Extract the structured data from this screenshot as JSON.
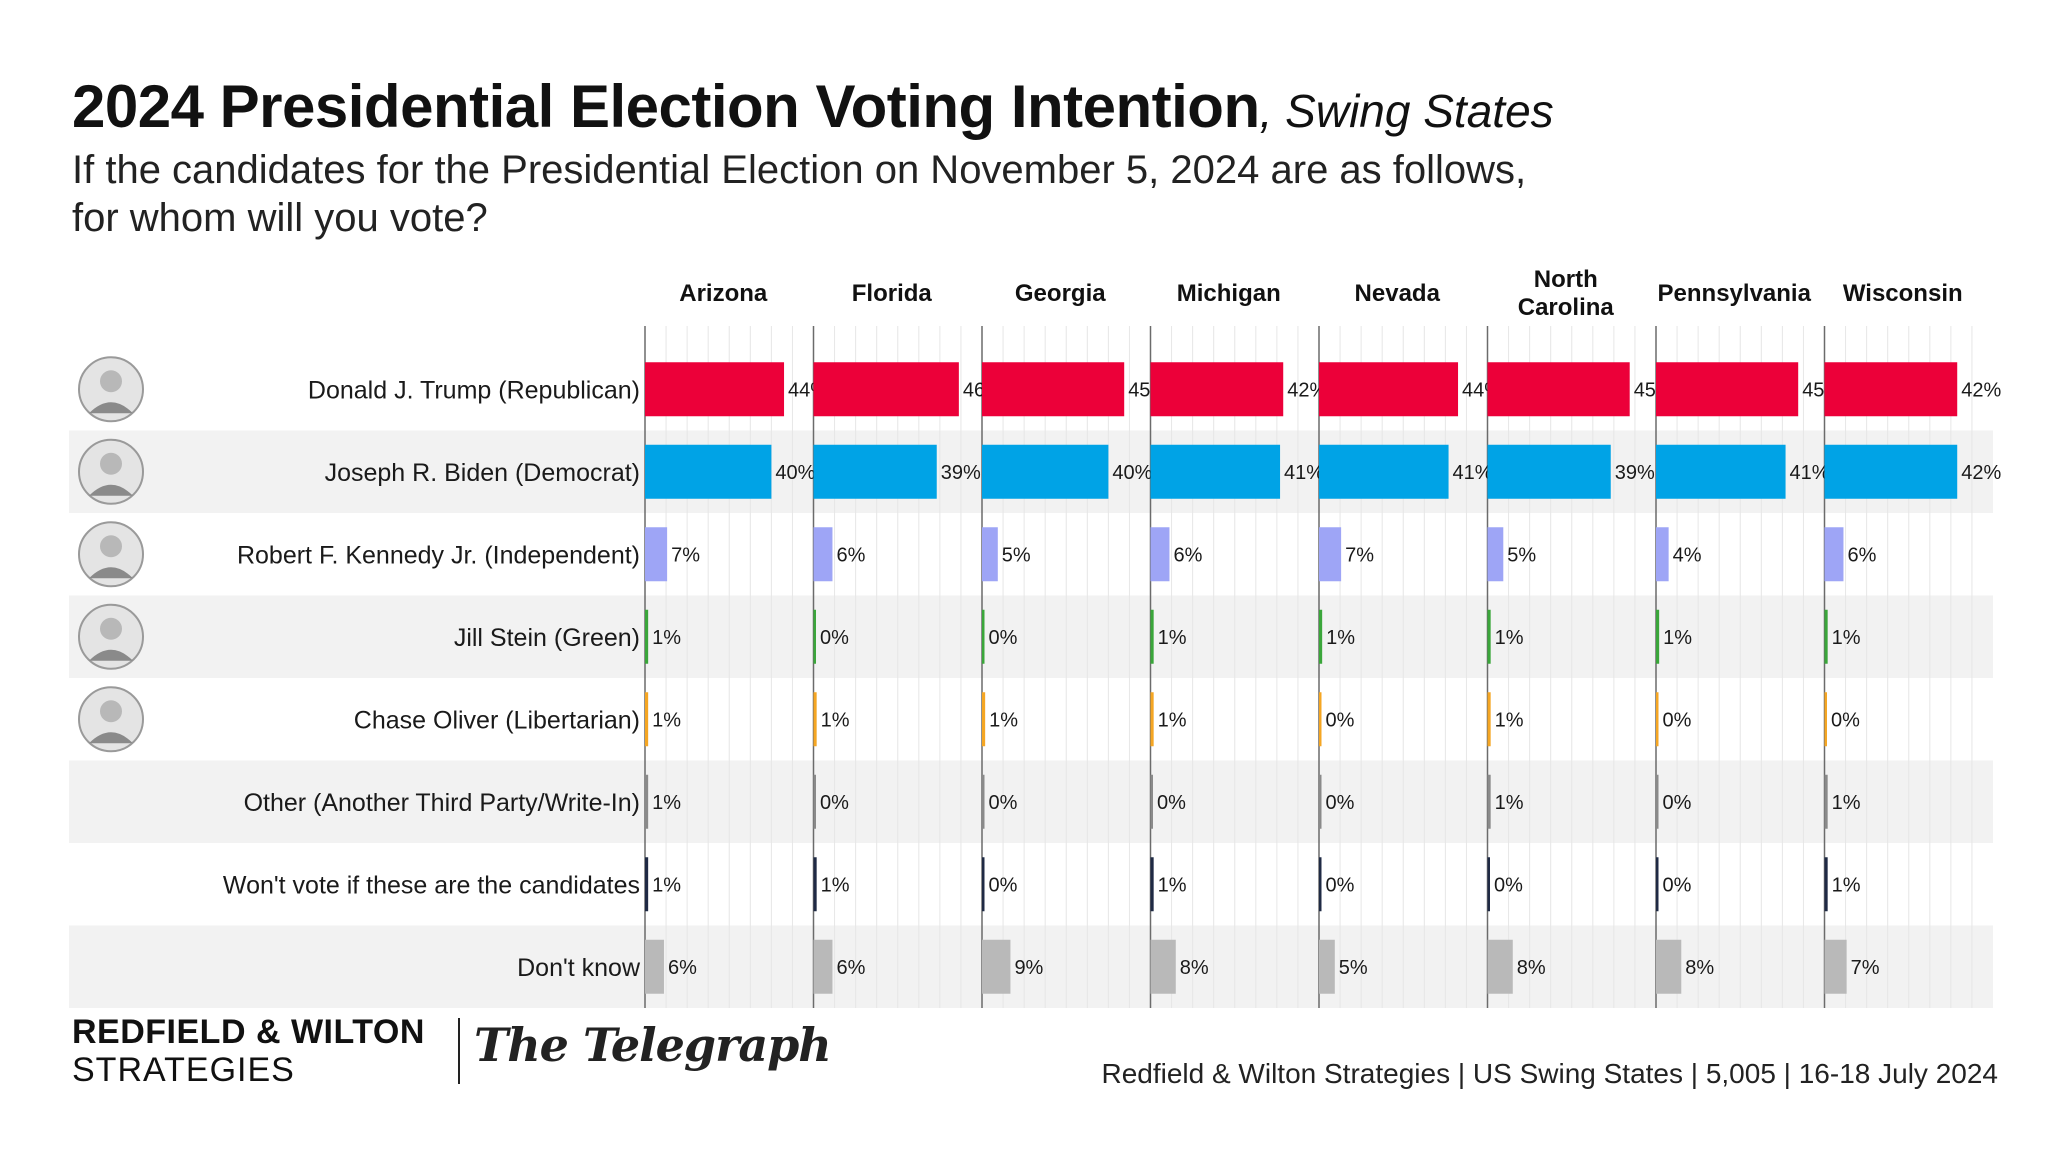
{
  "title": {
    "main": "2024 Presidential Election Voting Intention",
    "suffix": ", Swing States",
    "subtitle": "If the candidates for the Presidential Election on November 5, 2024 are as follows, for whom will you vote?"
  },
  "chart_data": {
    "type": "bar",
    "title": "2024 Presidential Election Voting Intention, Swing States",
    "subtitle": "If the candidates for the Presidential Election on November 5, 2024 are as follows, for whom will you vote?",
    "xlabel": "",
    "ylabel": "",
    "unit": "%",
    "xlim": [
      0,
      50
    ],
    "grid": true,
    "states": [
      {
        "lines": [
          "Arizona"
        ]
      },
      {
        "lines": [
          "Florida"
        ]
      },
      {
        "lines": [
          "Georgia"
        ]
      },
      {
        "lines": [
          "Michigan"
        ]
      },
      {
        "lines": [
          "Nevada"
        ]
      },
      {
        "lines": [
          "North",
          "Carolina"
        ]
      },
      {
        "lines": [
          "Pennsylvania"
        ]
      },
      {
        "lines": [
          "Wisconsin"
        ]
      }
    ],
    "series": [
      {
        "name": "Donald J. Trump (Republican)",
        "color": "#ec0039",
        "avatar": "trump-avatar",
        "values": [
          44,
          46,
          45,
          42,
          44,
          45,
          45,
          42
        ]
      },
      {
        "name": "Joseph R. Biden (Democrat)",
        "color": "#00a3e6",
        "avatar": "biden-avatar",
        "values": [
          40,
          39,
          40,
          41,
          41,
          39,
          41,
          42
        ]
      },
      {
        "name": "Robert F. Kennedy Jr. (Independent)",
        "color": "#9ea5f6",
        "avatar": "kennedy-avatar",
        "values": [
          7,
          6,
          5,
          6,
          7,
          5,
          4,
          6
        ]
      },
      {
        "name": "Jill Stein (Green)",
        "color": "#3aa63a",
        "avatar": "stein-avatar",
        "values": [
          1,
          0,
          0,
          1,
          1,
          1,
          1,
          1
        ]
      },
      {
        "name": "Chase Oliver (Libertarian)",
        "color": "#f5a623",
        "avatar": "oliver-avatar",
        "values": [
          1,
          1,
          1,
          1,
          0,
          1,
          0,
          0
        ]
      },
      {
        "name": "Other (Another Third Party/Write-In)",
        "color": "#8a8a8a",
        "avatar": "",
        "values": [
          1,
          0,
          0,
          0,
          0,
          1,
          0,
          1
        ]
      },
      {
        "name": "Won't vote if these are the candidates",
        "color": "#1f2a44",
        "avatar": "",
        "values": [
          1,
          1,
          0,
          1,
          0,
          0,
          0,
          1
        ]
      },
      {
        "name": "Don't know",
        "color": "#b9b9b9",
        "avatar": "",
        "values": [
          6,
          6,
          9,
          8,
          5,
          8,
          8,
          7
        ]
      }
    ]
  },
  "footer": {
    "brand_main": "REDFIELD & WILTON",
    "brand_sub": "STRATEGIES",
    "paper": "The Telegraph",
    "source": "Redfield & Wilton Strategies | US Swing States | 5,005 | 16-18 July 2024"
  }
}
